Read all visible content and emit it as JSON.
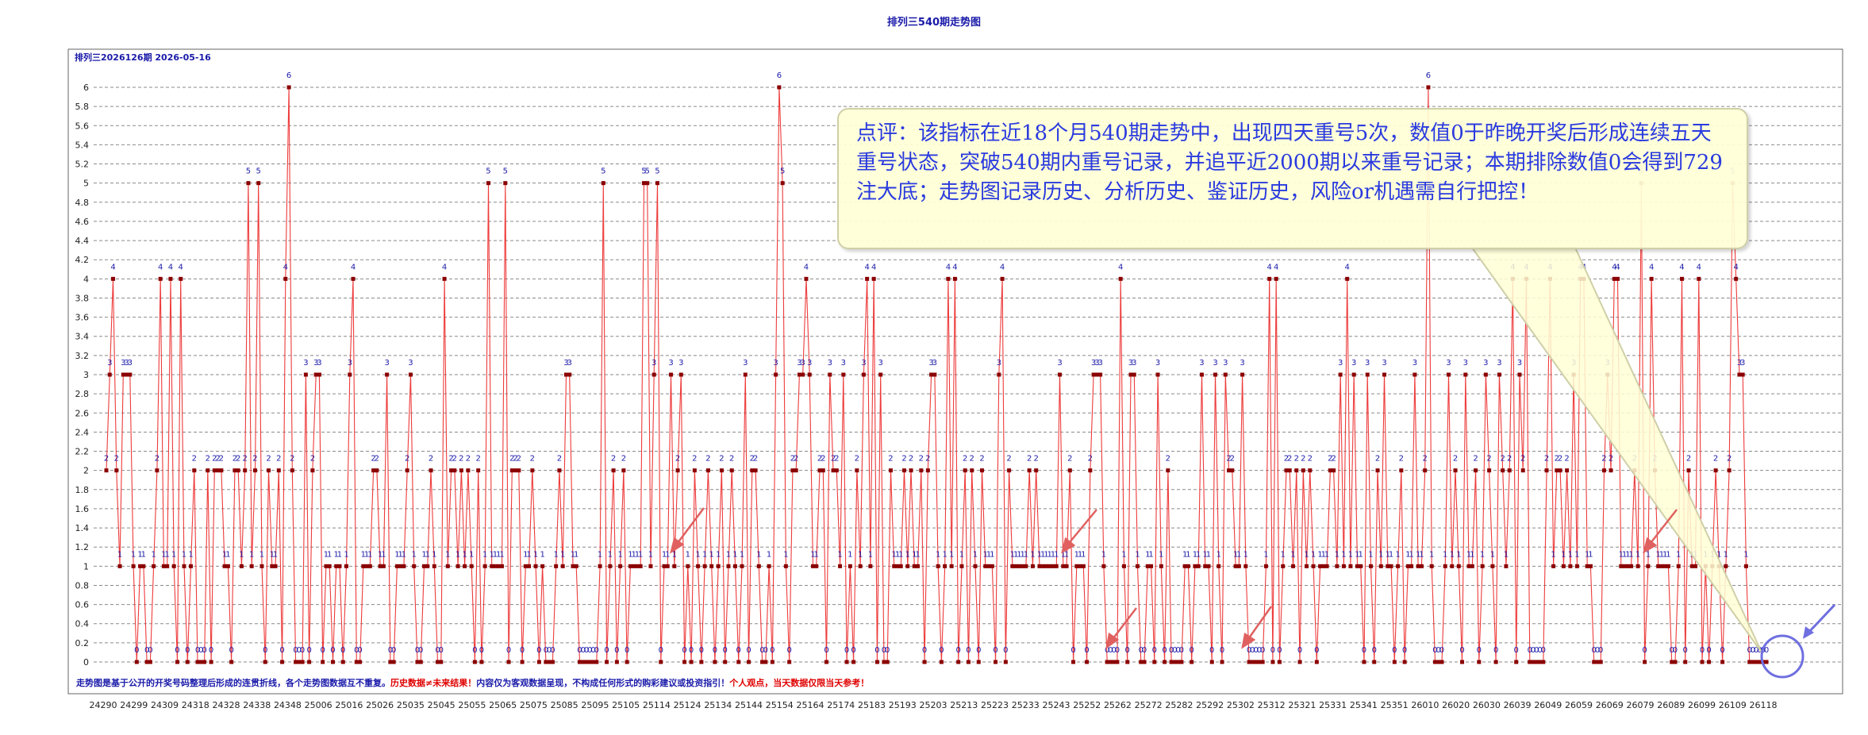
{
  "page_title": "排列三540期走势图",
  "header_label": "排列三2026126期 2026-05-16",
  "footer": {
    "part1": "走势图是基于公开的开奖号码整理后形成的连贯折线，各个走势图数据互不重复。",
    "part2": "历史数据≠未来结果！",
    "part3": "内容仅为客观数据呈现，不构成任何形式的购彩建议或投资指引！",
    "part4": "个人观点，当天数据仅限当天参考！"
  },
  "callout_text": "点评：该指标在近18个月540期走势中，出现四天重号5次，数值0于昨晚开奖后形成连续五天重号状态，突破540期内重号记录，并追平近2000期以来重号记录；本期排除数值0会得到729注大底；走势图记录历史、分析历史、鉴证历史，风险or机遇需自行把控！",
  "colors": {
    "line": "#ee3b3b",
    "marker": "#8b0000",
    "title": "#1a1aaa",
    "grid": "#7f7f7f",
    "callout_text": "#2a3adf",
    "arrow": "#e06060",
    "circle": "#6f6fe0",
    "footer_blue": "#1a1aaa",
    "footer_red": "#e00000"
  },
  "chart_data": {
    "type": "line",
    "title": "排列三540期走势图",
    "ylim": [
      0,
      6.2
    ],
    "y_ticks": [
      "0",
      "0.2",
      "0.4",
      "0.6",
      "0.8",
      "1",
      "1.2",
      "1.4",
      "1.6",
      "1.8",
      "2",
      "2.2",
      "2.4",
      "2.6",
      "2.8",
      "3",
      "3.2",
      "3.4",
      "3.6",
      "3.8",
      "4",
      "4.2",
      "4.4",
      "4.6",
      "4.8",
      "5",
      "5.2",
      "5.4",
      "5.6",
      "5.8",
      "6"
    ],
    "x_tick_labels": [
      "24290",
      "24299",
      "24309",
      "24318",
      "24328",
      "24338",
      "24348",
      "25006",
      "25016",
      "25026",
      "25035",
      "25045",
      "25055",
      "25065",
      "25075",
      "25085",
      "25095",
      "25105",
      "25114",
      "25124",
      "25134",
      "25144",
      "25154",
      "25164",
      "25174",
      "25183",
      "25193",
      "25203",
      "25213",
      "25223",
      "25233",
      "25243",
      "25252",
      "25262",
      "25272",
      "25282",
      "25292",
      "25302",
      "25312",
      "25321",
      "25331",
      "25341",
      "25351",
      "26010",
      "26020",
      "26030",
      "26039",
      "26049",
      "26059",
      "26069",
      "26079",
      "26089",
      "26099",
      "26109",
      "26118"
    ],
    "grid": true,
    "legend": "none",
    "series": [
      {
        "values": [
          2,
          3,
          4,
          2,
          1,
          3,
          3,
          3,
          1,
          0,
          1,
          1,
          0,
          0,
          1,
          2,
          4,
          1,
          1,
          4,
          1,
          0,
          4,
          1,
          0,
          1,
          2,
          0,
          0,
          0,
          2,
          0,
          2,
          2,
          2,
          1,
          1,
          0,
          2,
          2,
          1,
          2,
          5,
          1,
          2,
          5,
          1,
          0,
          2,
          1,
          1,
          2,
          0,
          4,
          6,
          2,
          0,
          0,
          0,
          3,
          0,
          2,
          3,
          3,
          0,
          1,
          1,
          0,
          1,
          1,
          0,
          1,
          3,
          4,
          0,
          0,
          1,
          1,
          1,
          2,
          2,
          1,
          1,
          3,
          0,
          0,
          1,
          1,
          1,
          2,
          3,
          1,
          0,
          0,
          1,
          1,
          2,
          1,
          0,
          0,
          4,
          1,
          2,
          2,
          1,
          2,
          1,
          2,
          1,
          0,
          2,
          0,
          1,
          5,
          1,
          1,
          1,
          1,
          5,
          0,
          2,
          2,
          2,
          0,
          1,
          1,
          2,
          1,
          0,
          1,
          0,
          0,
          0,
          1,
          2,
          1,
          3,
          3,
          1,
          1,
          0,
          0,
          0,
          0,
          0,
          0,
          1,
          5,
          0,
          1,
          2,
          0,
          1,
          2,
          0,
          1,
          1,
          1,
          1,
          5,
          5,
          1,
          3,
          5,
          0,
          1,
          1,
          3,
          1,
          2,
          3,
          0,
          1,
          0,
          2,
          1,
          0,
          1,
          2,
          1,
          0,
          1,
          2,
          0,
          1,
          2,
          1,
          0,
          1,
          3,
          0,
          2,
          2,
          1,
          0,
          0,
          1,
          0,
          3,
          6,
          5,
          1,
          0,
          2,
          2,
          3,
          3,
          4,
          3,
          1,
          1,
          2,
          2,
          0,
          3,
          2,
          2,
          1,
          3,
          0,
          1,
          0,
          2,
          1,
          3,
          4,
          1,
          4,
          0,
          3,
          0,
          0,
          2,
          1,
          1,
          1,
          2,
          1,
          2,
          1,
          1,
          2,
          0,
          2,
          3,
          3,
          1,
          0,
          1,
          4,
          1,
          4,
          0,
          1,
          2,
          0,
          2,
          1,
          0,
          2,
          1,
          1,
          1,
          0,
          3,
          4,
          0,
          2,
          1,
          1,
          1,
          1,
          1,
          2,
          1,
          2,
          1,
          1,
          1,
          1,
          1,
          1,
          3,
          1,
          1,
          2,
          0,
          1,
          1,
          1,
          0,
          2,
          3,
          3,
          3,
          1,
          0,
          0,
          0,
          0,
          4,
          1,
          0,
          3,
          3,
          1,
          0,
          0,
          1,
          1,
          0,
          3,
          1,
          0,
          2,
          0,
          0,
          0,
          0,
          1,
          1,
          0,
          1,
          1,
          3,
          1,
          1,
          0,
          3,
          1,
          0,
          3,
          2,
          2,
          1,
          1,
          3,
          1,
          0,
          0,
          0,
          0,
          0,
          1,
          4,
          0,
          4,
          0,
          1,
          2,
          2,
          1,
          2,
          0,
          2,
          1,
          2,
          1,
          0,
          1,
          1,
          1,
          2,
          2,
          1,
          3,
          1,
          4,
          1,
          3,
          1,
          1,
          0,
          3,
          1,
          0,
          2,
          1,
          3,
          1,
          1,
          0,
          1,
          2,
          0,
          1,
          1,
          3,
          1,
          1,
          2,
          6,
          1,
          0,
          0,
          0,
          1,
          3,
          1,
          2,
          1,
          0,
          3,
          1,
          1,
          2,
          0,
          1,
          3,
          2,
          1,
          0,
          3,
          2,
          1,
          2,
          4,
          0,
          3,
          2,
          4,
          0,
          0,
          0,
          0,
          0,
          2,
          4,
          1,
          2,
          2,
          1,
          2,
          1,
          3,
          1,
          4,
          4,
          1,
          1,
          0,
          0,
          0,
          2,
          3,
          2,
          4,
          4,
          1,
          1,
          1,
          1,
          2,
          1,
          5,
          0,
          1,
          4,
          2,
          1,
          1,
          1,
          1,
          0,
          0,
          1,
          4,
          0,
          2,
          1,
          1,
          4,
          0,
          1,
          0,
          1,
          2,
          1,
          0,
          1,
          2,
          5,
          4,
          3,
          3,
          1,
          0,
          0,
          0,
          0,
          0,
          0
        ]
      }
    ]
  }
}
